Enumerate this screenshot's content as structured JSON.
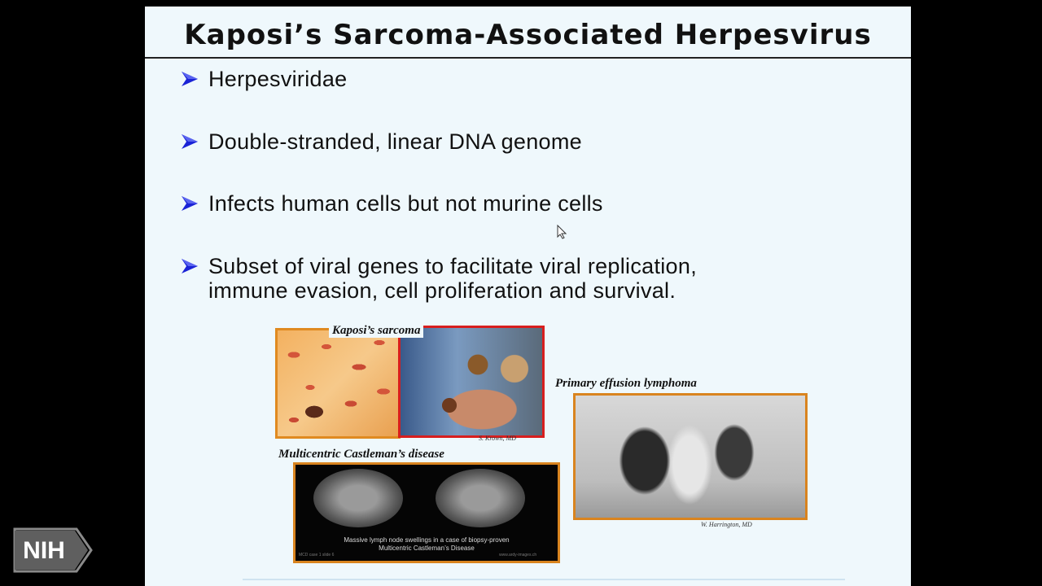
{
  "slide": {
    "title": "Kaposi’s Sarcoma-Associated Herpesvirus",
    "bullets": [
      {
        "line1": "Herpesviridae",
        "line2": ""
      },
      {
        "line1": "Double-stranded,  linear DNA genome",
        "line2": ""
      },
      {
        "line1": "Infects human cells but not murine cells",
        "line2": ""
      },
      {
        "line1": "Subset of viral genes to facilitate viral replication,",
        "line2": "immune evasion, cell proliferation and survival."
      }
    ]
  },
  "figures": {
    "kaposi": {
      "caption": "Kaposi’s sarcoma",
      "credit": "S. Krown, MD"
    },
    "effusion": {
      "caption": "Primary effusion lymphoma",
      "credit": "W. Harrington, MD"
    },
    "castleman": {
      "caption": "Multicentric Castleman’s disease",
      "ct_line1": "Massive lymph node swellings in a case of biopsy-proven",
      "ct_line2": "Multicentric Castleman’s Disease",
      "ct_foot_left": "MCD case 1 slide 6",
      "ct_foot_right": "www.ardy-images.ch"
    }
  },
  "logo": {
    "text": "NIH"
  },
  "colors": {
    "bullet_arrow": "#1a23d6",
    "slide_bg": "#eff8fc",
    "frame_orange": "#d9841f",
    "frame_red": "#d81e1e"
  },
  "icons": {
    "bullet": "arrow-bullet-icon",
    "cursor": "mouse-cursor-icon"
  }
}
